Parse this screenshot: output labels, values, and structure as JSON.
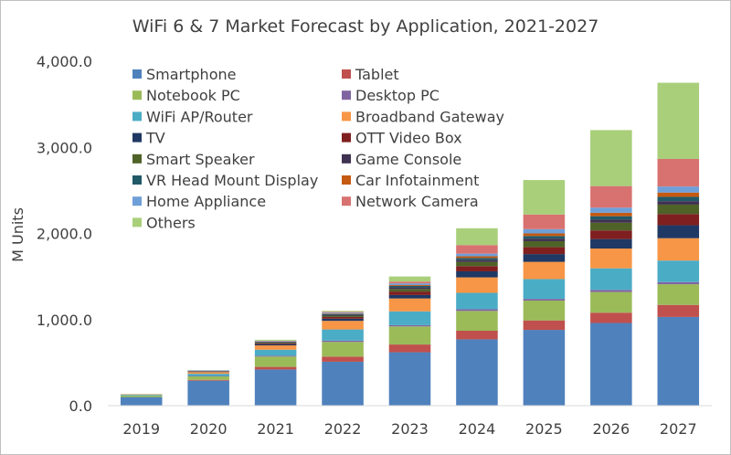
{
  "chart_data": {
    "type": "bar",
    "stacked": true,
    "title": "WiFi 6 & 7 Market Forecast by Application, 2021-2027",
    "ylabel": "M Units",
    "xlabel": "",
    "ylim": [
      0,
      4000
    ],
    "yticks": [
      0,
      1000,
      2000,
      3000,
      4000
    ],
    "ytick_labels": [
      "0.0",
      "1,000.0",
      "2,000.0",
      "3,000.0",
      "4,000.0"
    ],
    "grid": false,
    "legend_position": "top-left",
    "categories": [
      "2019",
      "2020",
      "2021",
      "2022",
      "2023",
      "2024",
      "2025",
      "2026",
      "2027"
    ],
    "series": [
      {
        "name": "Smartphone",
        "color": "#4f81bd",
        "values": [
          100,
          290,
          420,
          510,
          620,
          770,
          880,
          960,
          1030
        ]
      },
      {
        "name": "Tablet",
        "color": "#c0504d",
        "values": [
          0,
          10,
          30,
          60,
          90,
          100,
          110,
          120,
          140
        ]
      },
      {
        "name": "Notebook PC",
        "color": "#9bbb59",
        "values": [
          20,
          40,
          120,
          170,
          210,
          230,
          230,
          240,
          240
        ]
      },
      {
        "name": "Desktop PC",
        "color": "#8064a2",
        "values": [
          0,
          5,
          10,
          15,
          15,
          20,
          20,
          25,
          25
        ]
      },
      {
        "name": "WiFi AP/Router",
        "color": "#4bacc6",
        "values": [
          10,
          25,
          70,
          130,
          160,
          190,
          230,
          250,
          250
        ]
      },
      {
        "name": "Broadband Gateway",
        "color": "#f79646",
        "values": [
          5,
          20,
          50,
          100,
          150,
          180,
          200,
          230,
          260
        ]
      },
      {
        "name": "TV",
        "color": "#1f3864",
        "values": [
          0,
          5,
          15,
          25,
          40,
          70,
          90,
          110,
          150
        ]
      },
      {
        "name": "OTT Video Box",
        "color": "#7f1f1f",
        "values": [
          0,
          5,
          10,
          20,
          40,
          60,
          80,
          100,
          130
        ]
      },
      {
        "name": "Smart Speaker",
        "color": "#4f6228",
        "values": [
          0,
          3,
          8,
          15,
          30,
          50,
          70,
          90,
          110
        ]
      },
      {
        "name": "Game Console",
        "color": "#3f3151",
        "values": [
          0,
          2,
          5,
          10,
          20,
          25,
          30,
          35,
          40
        ]
      },
      {
        "name": "VR Head Mount Display",
        "color": "#215968",
        "values": [
          0,
          2,
          5,
          10,
          15,
          20,
          30,
          40,
          50
        ]
      },
      {
        "name": "Car Infotainment",
        "color": "#c55a11",
        "values": [
          0,
          0,
          2,
          5,
          10,
          20,
          30,
          40,
          50
        ]
      },
      {
        "name": "Home Appliance",
        "color": "#6f9fd8",
        "values": [
          0,
          3,
          5,
          10,
          20,
          30,
          50,
          60,
          70
        ]
      },
      {
        "name": "Network Camera",
        "color": "#d87270",
        "values": [
          0,
          0,
          5,
          10,
          20,
          100,
          170,
          250,
          320
        ]
      },
      {
        "name": "Others",
        "color": "#a9cf7a",
        "values": [
          0,
          0,
          10,
          10,
          60,
          195,
          400,
          650,
          885
        ]
      }
    ]
  }
}
